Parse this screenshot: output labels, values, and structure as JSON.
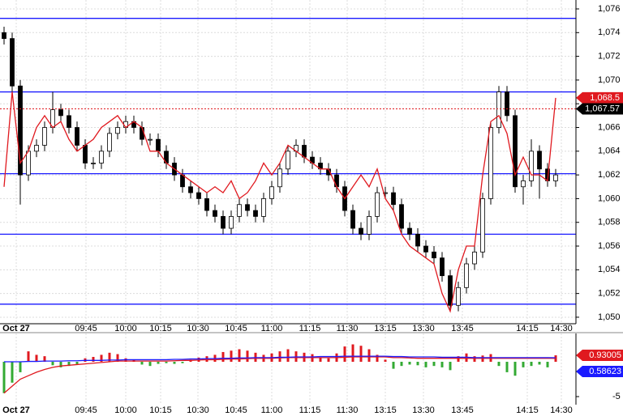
{
  "chart_data": [
    {
      "type": "candlestick",
      "xlim": [
        0,
        71
      ],
      "xticks": [
        {
          "value": 2,
          "label": "Oct 27"
        },
        {
          "value": 10.6,
          "label": "09:45"
        },
        {
          "value": 15.5,
          "label": "10:00"
        },
        {
          "value": 19.8,
          "label": "10:15"
        },
        {
          "value": 24.4,
          "label": "10:30"
        },
        {
          "value": 29.1,
          "label": "10:45"
        },
        {
          "value": 33.5,
          "label": "11:00"
        },
        {
          "value": 38.2,
          "label": "11:15"
        },
        {
          "value": 42.8,
          "label": "11:30"
        },
        {
          "value": 47.5,
          "label": "13:15"
        },
        {
          "value": 52.2,
          "label": "13:30"
        },
        {
          "value": 57,
          "label": "13:45"
        },
        {
          "value": 65,
          "label": "14:15"
        },
        {
          "value": 69.2,
          "label": "14:30"
        }
      ],
      "ylim": [
        1049.45,
        1076.75
      ],
      "yticks": [
        {
          "value": 1050,
          "label": "1,050"
        },
        {
          "value": 1052,
          "label": "1,052"
        },
        {
          "value": 1054,
          "label": "1,054"
        },
        {
          "value": 1056,
          "label": "1,056"
        },
        {
          "value": 1058,
          "label": "1,058"
        },
        {
          "value": 1060,
          "label": "1,060"
        },
        {
          "value": 1062,
          "label": "1,062"
        },
        {
          "value": 1064,
          "label": "1,064"
        },
        {
          "value": 1066,
          "label": "1,066"
        },
        {
          "value": 1068,
          "label": "1,068"
        },
        {
          "value": 1070,
          "label": "1,070"
        },
        {
          "value": 1072,
          "label": "1,072"
        },
        {
          "value": 1074,
          "label": "1,074"
        },
        {
          "value": 1076,
          "label": "1,076"
        }
      ],
      "grid": true,
      "open": [
        1074,
        1073.5,
        1069.5,
        1062,
        1064,
        1064.5,
        1066,
        1067.5,
        1067,
        1066,
        1064.5,
        1063,
        1063,
        1064,
        1065.5,
        1066,
        1066.5,
        1066,
        1065,
        1065,
        1064,
        1063,
        1062,
        1061,
        1060.5,
        1060,
        1059,
        1058.5,
        1057.5,
        1058.5,
        1059.5,
        1059,
        1058.5,
        1060,
        1061,
        1062.5,
        1064,
        1064.5,
        1063.5,
        1063,
        1062.5,
        1062,
        1061,
        1059,
        1057.5,
        1057,
        1058.5,
        1060.5,
        1060.5,
        1059.5,
        1057.5,
        1057,
        1056,
        1055.5,
        1055,
        1053.5,
        1051,
        1052.5,
        1054.5,
        1055.5,
        1060,
        1066,
        1069,
        1067,
        1061,
        1061.5,
        1064,
        1062.5,
        1061.5
      ],
      "high": [
        1074.5,
        1074,
        1070,
        1064.5,
        1065,
        1066.5,
        1069,
        1068,
        1067.5,
        1066.5,
        1065,
        1063.5,
        1064.5,
        1066,
        1066.5,
        1067,
        1067,
        1066.5,
        1065.5,
        1065.5,
        1064.5,
        1063.5,
        1062.5,
        1061.5,
        1061,
        1060.5,
        1059.5,
        1059,
        1059,
        1060,
        1060,
        1059.5,
        1060.5,
        1061.5,
        1063,
        1064.5,
        1065,
        1065,
        1064,
        1063.5,
        1063,
        1062.5,
        1061.5,
        1059.5,
        1058,
        1059,
        1061,
        1061,
        1061,
        1060,
        1058,
        1057.5,
        1056.5,
        1056,
        1055.5,
        1054,
        1053,
        1055,
        1056,
        1060.5,
        1066.5,
        1069.5,
        1069.5,
        1067.5,
        1062,
        1065,
        1064.5,
        1063,
        1062.5
      ],
      "low": [
        1073,
        1069,
        1059.5,
        1061.5,
        1063.5,
        1064,
        1065.5,
        1066.5,
        1065.5,
        1064,
        1062.5,
        1062.5,
        1062.5,
        1063.5,
        1065,
        1065.5,
        1065.5,
        1064.5,
        1064.5,
        1063.5,
        1062.5,
        1061.5,
        1060.5,
        1060,
        1059.5,
        1058.5,
        1058,
        1057,
        1057,
        1058,
        1058.5,
        1058,
        1058,
        1059.5,
        1060.5,
        1062,
        1063.5,
        1063,
        1062.5,
        1062,
        1061.5,
        1060.5,
        1058.5,
        1057,
        1056.5,
        1056.5,
        1058,
        1060,
        1059,
        1057,
        1056.5,
        1055.5,
        1055,
        1054.5,
        1053,
        1050.5,
        1050.5,
        1052,
        1054,
        1055,
        1059.5,
        1065.5,
        1066.5,
        1060.5,
        1059.5,
        1061,
        1060,
        1061,
        1061
      ],
      "close": [
        1073.5,
        1069.5,
        1062,
        1064,
        1064.5,
        1066,
        1067.5,
        1067,
        1066,
        1064.5,
        1063,
        1063,
        1064,
        1065.5,
        1066,
        1066.5,
        1066,
        1065,
        1065,
        1064,
        1063,
        1062,
        1061,
        1060.5,
        1060,
        1059,
        1058.5,
        1057.5,
        1058.5,
        1059.5,
        1059,
        1058.5,
        1060,
        1061,
        1062.5,
        1064,
        1064.5,
        1063.5,
        1063,
        1062.5,
        1062,
        1061,
        1059,
        1057.5,
        1057,
        1058.5,
        1060.5,
        1060.5,
        1059.5,
        1057.5,
        1057,
        1056,
        1055.5,
        1055,
        1053.5,
        1051,
        1052.5,
        1054.5,
        1055.5,
        1060,
        1066,
        1069,
        1067,
        1061,
        1061.5,
        1064,
        1062.5,
        1061.5,
        1062
      ],
      "series": [
        {
          "color": "#e0191f",
          "values": [
            1061,
            1069,
            1063,
            1064,
            1066,
            1067,
            1066,
            1066.5,
            1065,
            1064,
            1064.5,
            1065,
            1066,
            1066.5,
            1067,
            1066,
            1066.5,
            1066,
            1064,
            1064,
            1063,
            1062.5,
            1062,
            1061.5,
            1061,
            1060.5,
            1061,
            1060.5,
            1061.5,
            1060,
            1060.5,
            1061.5,
            1063,
            1062,
            1063,
            1064.5,
            1064,
            1063.5,
            1063,
            1062.5,
            1062.5,
            1061,
            1060,
            1061,
            1062,
            1061,
            1062.5,
            1060,
            1059,
            1057,
            1056,
            1055.5,
            1055,
            1054.5,
            1052,
            1050.5,
            1054,
            1056,
            1056,
            1062,
            1066.5,
            1067,
            1065.5,
            1062,
            1063.5,
            1062,
            1062,
            1061.5,
            1068.5
          ]
        }
      ],
      "levels": [
        1075.2,
        1069,
        1062.1,
        1057,
        1051.1
      ],
      "level_color": "#1a1aff",
      "price_labels": [
        {
          "value": 1068.5,
          "label": "1,068.5",
          "color": "#e0191f"
        },
        {
          "value": 1067.57,
          "label": "1,067.57",
          "color": "#000000"
        }
      ]
    },
    {
      "type": "histogram-oscillator",
      "ylim": [
        -6.16,
        4.07
      ],
      "yticks": [
        -5
      ],
      "values": [
        -4.5,
        -3,
        -1.5,
        1.5,
        1,
        0.8,
        -0.5,
        -0.8,
        -0.6,
        -0.4,
        0.5,
        0.7,
        1,
        1.3,
        1.1,
        0.5,
        0.3,
        -0.4,
        -0.6,
        -0.3,
        -0.2,
        -0.3,
        -0.2,
        0.3,
        0.6,
        0.8,
        1,
        1.4,
        1.6,
        1.8,
        1.6,
        1.3,
        1,
        1.2,
        1.5,
        1.8,
        1.5,
        1.3,
        1.1,
        0.6,
        0.5,
        1.2,
        2.2,
        2.5,
        2.3,
        1.8,
        1,
        0.3,
        -1,
        -0.6,
        -0.4,
        -0.5,
        -0.8,
        -0.6,
        -0.8,
        -1.2,
        0.8,
        1.2,
        0.8,
        0.9,
        1.1,
        -0.6,
        -1.5,
        -2,
        -0.8,
        -0.6,
        -0.4,
        -0.8,
        0.93
      ],
      "up_color": "#e0191f",
      "down_color": "#33aa33",
      "series": [
        {
          "color": "#e0191f",
          "values": [
            -4.5,
            -3.5,
            -2.5,
            -2,
            -1.5,
            -1.1,
            -0.8,
            -0.6,
            -0.5,
            -0.4,
            -0.3,
            -0.2,
            -0.1,
            0,
            0.1,
            0.1,
            0.1,
            0.1,
            0.1,
            0.1,
            0.1,
            0.15,
            0.2,
            0.2,
            0.25,
            0.3,
            0.3,
            0.35,
            0.4,
            0.4,
            0.45,
            0.5,
            0.5,
            0.5,
            0.55,
            0.6,
            0.6,
            0.6,
            0.6,
            0.6,
            0.6,
            0.6,
            0.65,
            0.7,
            0.7,
            0.7,
            0.7,
            0.7,
            0.6,
            0.6,
            0.55,
            0.5,
            0.5,
            0.5,
            0.5,
            0.5,
            0.5,
            0.5,
            0.5,
            0.5,
            0.5,
            0.5,
            0.5,
            0.5,
            0.5,
            0.5,
            0.5,
            0.5,
            0.5
          ]
        },
        {
          "color": "#1a1aff",
          "values": [
            0,
            0,
            0,
            0.05,
            0.05,
            0.1,
            0.1,
            0.1,
            0.15,
            0.15,
            0.2,
            0.2,
            0.2,
            0.25,
            0.25,
            0.3,
            0.3,
            0.3,
            0.3,
            0.3,
            0.3,
            0.35,
            0.35,
            0.4,
            0.4,
            0.45,
            0.45,
            0.5,
            0.5,
            0.55,
            0.55,
            0.6,
            0.6,
            0.6,
            0.65,
            0.65,
            0.7,
            0.7,
            0.7,
            0.75,
            0.75,
            0.75,
            0.8,
            0.8,
            0.8,
            0.8,
            0.8,
            0.8,
            0.75,
            0.75,
            0.7,
            0.7,
            0.7,
            0.7,
            0.65,
            0.65,
            0.65,
            0.65,
            0.6,
            0.6,
            0.6,
            0.6,
            0.6,
            0.6,
            0.6,
            0.6,
            0.6,
            0.6,
            0.58623
          ]
        }
      ],
      "value_labels": [
        {
          "value": 0.93005,
          "label": "0.93005",
          "color": "#e0191f"
        },
        {
          "value": 0.58623,
          "label": "0.58623",
          "color": "#1a1aff"
        }
      ]
    }
  ]
}
